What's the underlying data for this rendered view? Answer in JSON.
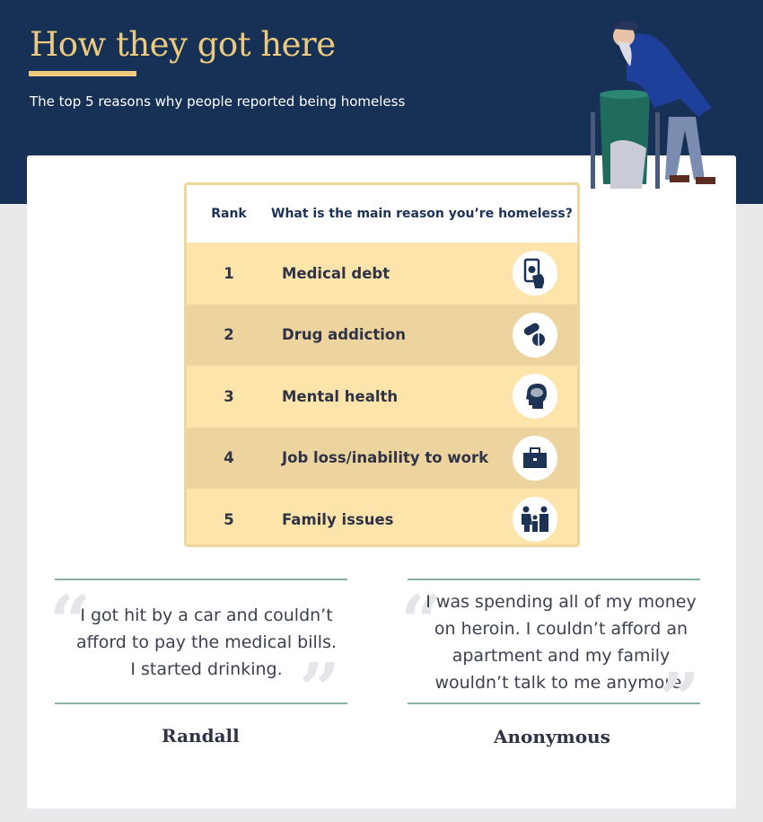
{
  "header": {
    "title": "How they got here",
    "subtitle": "The top 5 reasons why people reported being homeless"
  },
  "table": {
    "headers": [
      "Rank",
      "What is the main reason you’re homeless?"
    ],
    "rows": [
      {
        "rank": "1",
        "reason": "Medical debt",
        "icon": "medical-bill-icon"
      },
      {
        "rank": "2",
        "reason": "Drug addiction",
        "icon": "pills-icon"
      },
      {
        "rank": "3",
        "reason": "Mental health",
        "icon": "brain-head-icon"
      },
      {
        "rank": "4",
        "reason": "Job loss/inability to work",
        "icon": "briefcase-icon"
      },
      {
        "rank": "5",
        "reason": "Family issues",
        "icon": "family-icon"
      }
    ]
  },
  "quotes": [
    {
      "text": "I got hit by a car and couldn’t afford to pay the medical bills. I started drinking.",
      "name": "Randall"
    },
    {
      "text": "I was spending all of my money on heroin. I couldn’t afford an apartment and my family wouldn’t talk to me anymore.",
      "name": "Anonymous"
    }
  ],
  "colors": {
    "navy": "#173156",
    "gold": "#eccb7e",
    "row_light": "#fde4ab",
    "row_dark": "#edd49f",
    "rule": "#87b4a5"
  }
}
